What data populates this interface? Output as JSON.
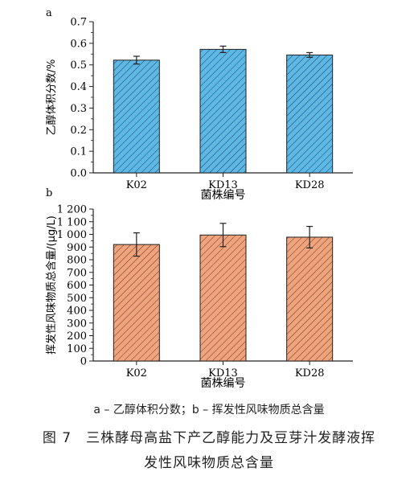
{
  "chart_data": [
    {
      "type": "bar",
      "panel_label": "a",
      "categories": [
        "K02",
        "KD13",
        "KD28"
      ],
      "values": [
        0.522,
        0.572,
        0.546
      ],
      "errors": [
        0.018,
        0.015,
        0.011
      ],
      "xlabel": "菌株编号",
      "ylabel": "乙醇体积分数/%",
      "ylim": [
        0,
        0.7
      ],
      "yticks": [
        0.0,
        0.1,
        0.2,
        0.3,
        0.4,
        0.5,
        0.6,
        0.7
      ],
      "ytick_labels": [
        "0.0",
        "0.1",
        "0.2",
        "0.3",
        "0.4",
        "0.5",
        "0.6",
        "0.7"
      ],
      "bar_color": "#5db8e6",
      "hatch": "diagonal",
      "grid": false
    },
    {
      "type": "bar",
      "panel_label": "b",
      "categories": [
        "K02",
        "KD13",
        "KD28"
      ],
      "values": [
        920,
        995,
        978
      ],
      "errors": [
        92,
        92,
        85
      ],
      "xlabel": "菌株编号",
      "ylabel": "挥发性风味物质总含量/(μg/L)",
      "ylim": [
        0,
        1200
      ],
      "yticks": [
        0,
        100,
        200,
        300,
        400,
        500,
        600,
        700,
        800,
        900,
        1000,
        1100,
        1200
      ],
      "ytick_labels": [
        "0",
        "100",
        "200",
        "300",
        "400",
        "500",
        "600",
        "700",
        "800",
        "900",
        "1 000",
        "1 100",
        "1 200"
      ],
      "bar_color": "#f0a47e",
      "hatch": "diagonal",
      "grid": false
    }
  ],
  "legend_text": "a – 乙醇体积分数；b – 挥发性风味物质总含量",
  "caption": {
    "line1": "图 7　三株酵母高盐下产乙醇能力及豆芽汁发酵液挥",
    "line2": "发性风味物质总含量"
  }
}
